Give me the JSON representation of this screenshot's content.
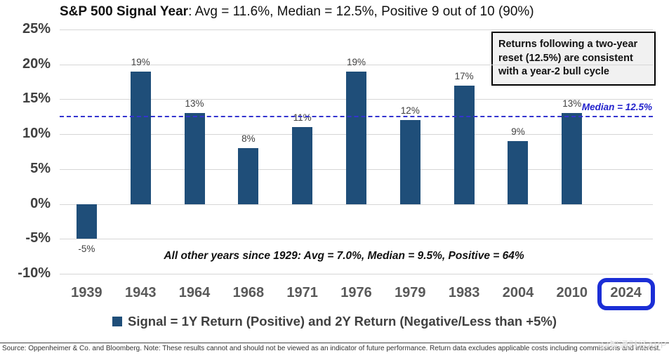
{
  "title": {
    "bold": "S&P 500 Signal Year",
    "rest": ": Avg = 11.6%, Median = 12.5%, Positive 9 out of 10 (90%)"
  },
  "callout": {
    "text": "Returns following a two-year reset (12.5%) are consistent with a year-2 bull cycle"
  },
  "median_label": "Median = 12.5%",
  "annotation": "All other years since 1929:  Avg = 7.0%, Median = 9.5%, Positive = 64%",
  "legend": {
    "label": "Signal = 1Y Return (Positive) and 2Y Return (Negative/Less than +5%)",
    "marker_color": "#1f4e79"
  },
  "source": "Source: Oppenheimer & Co. and Bloomberg. Note: These results cannot and should not be viewed as an indicator of future performance. Return data excludes applicable costs including commissions and interest.",
  "watermark": "@智通财经APP",
  "chart_data": {
    "type": "bar",
    "title": "S&P 500 Signal Year: Avg = 11.6%, Median = 12.5%, Positive 9 out of 10 (90%)",
    "categories": [
      "1939",
      "1943",
      "1964",
      "1968",
      "1971",
      "1976",
      "1979",
      "1983",
      "2004",
      "2010",
      "2024"
    ],
    "values": [
      -5,
      19,
      13,
      8,
      11,
      19,
      12,
      17,
      9,
      13,
      null
    ],
    "value_labels": [
      "-5%",
      "19%",
      "13%",
      "8%",
      "11%",
      "19%",
      "12%",
      "17%",
      "9%",
      "13%",
      ""
    ],
    "ylim": [
      -10,
      25
    ],
    "ytick_step": 5,
    "ytick_labels": [
      "25%",
      "20%",
      "15%",
      "10%",
      "5%",
      "0%",
      "-5%",
      "-10%"
    ],
    "xlabel": "",
    "ylabel": "",
    "grid": true,
    "median_line": 12.5,
    "median_line_color": "#3434cf",
    "bar_color": "#1f4e79",
    "highlighted_category": "2024",
    "highlight_box_color": "#1b2ed6",
    "legend_position": "bottom"
  }
}
